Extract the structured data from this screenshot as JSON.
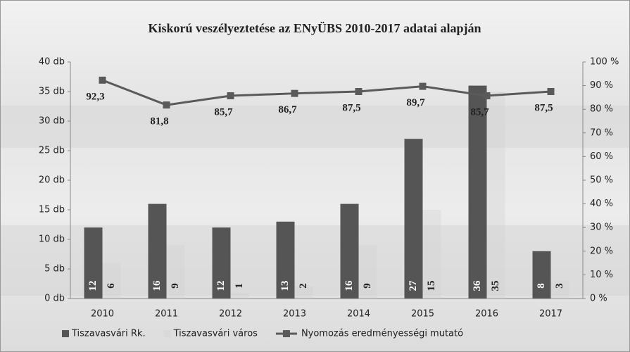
{
  "chart_data": {
    "type": "bar",
    "title": "Kiskorú veszélyeztetése az ENyÜBS 2010-2017 adatai alapján",
    "categories": [
      "2010",
      "2011",
      "2012",
      "2013",
      "2014",
      "2015",
      "2016",
      "2017"
    ],
    "series": [
      {
        "name": "Tiszavasvári Rk.",
        "color": "#555555",
        "values": [
          12,
          16,
          12,
          13,
          16,
          27,
          36,
          8
        ]
      },
      {
        "name": "Tiszavasvári város",
        "color": "#d0d0d0",
        "values": [
          6,
          9,
          1,
          2,
          9,
          15,
          35,
          3
        ]
      },
      {
        "name": "Nyomozás eredményességi mutató",
        "color": "#5a5a5a",
        "axis": "y2",
        "type": "line",
        "values": [
          92.3,
          81.8,
          85.7,
          86.7,
          87.5,
          89.7,
          85.7,
          87.5
        ],
        "value_labels": [
          "92,3",
          "81,8",
          "85,7",
          "86,7",
          "87,5",
          "89,7",
          "85,7",
          "87,5"
        ]
      }
    ],
    "ylim": [
      0,
      40
    ],
    "yticks": [
      {
        "value": 0,
        "label": "0 db"
      },
      {
        "value": 5,
        "label": "5 db"
      },
      {
        "value": 10,
        "label": "10 db"
      },
      {
        "value": 15,
        "label": "15 db"
      },
      {
        "value": 20,
        "label": "20 db"
      },
      {
        "value": 25,
        "label": "25 db"
      },
      {
        "value": 30,
        "label": "30 db"
      },
      {
        "value": 35,
        "label": "35 db"
      },
      {
        "value": 40,
        "label": "40 db"
      }
    ],
    "y2lim": [
      0,
      100
    ],
    "y2ticks": [
      {
        "value": 0,
        "label": "0 %"
      },
      {
        "value": 10,
        "label": "10 %"
      },
      {
        "value": 20,
        "label": "20 %"
      },
      {
        "value": 30,
        "label": "30 %"
      },
      {
        "value": 40,
        "label": "40 %"
      },
      {
        "value": 50,
        "label": "50 %"
      },
      {
        "value": 60,
        "label": "60 %"
      },
      {
        "value": 70,
        "label": "70 %"
      },
      {
        "value": 80,
        "label": "80 %"
      },
      {
        "value": 90,
        "label": "90 %"
      },
      {
        "value": 100,
        "label": "100 %"
      }
    ],
    "legend": "bottom"
  }
}
